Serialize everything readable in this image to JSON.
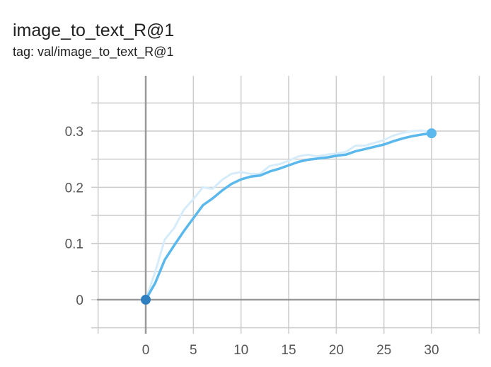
{
  "chart_data": {
    "type": "line",
    "title": "image_to_text_R@1",
    "subtitle": "tag: val/image_to_text_R@1",
    "xlabel": "",
    "ylabel": "",
    "xlim": [
      -5,
      35
    ],
    "ylim": [
      -0.05,
      0.4
    ],
    "xticks": [
      0,
      5,
      10,
      15,
      20,
      25,
      30
    ],
    "yticks": [
      0,
      0.1,
      0.2,
      0.3
    ],
    "ytick_labels": [
      "0",
      "0.1",
      "0.2",
      "0.3"
    ],
    "grid": true,
    "colors": {
      "smoothed": "#5ab8ec",
      "raw": "#d6ecfa",
      "start_marker": "#2f7fc1",
      "end_marker": "#5ab8ec",
      "axis": "#999999",
      "grid": "#cccccc"
    },
    "x": [
      0,
      1,
      2,
      3,
      4,
      5,
      6,
      7,
      8,
      9,
      10,
      11,
      12,
      13,
      14,
      15,
      16,
      17,
      18,
      19,
      20,
      21,
      22,
      23,
      24,
      25,
      26,
      27,
      28,
      29,
      30
    ],
    "series": [
      {
        "role": "raw",
        "values": [
          0,
          0.05,
          0.107,
          0.128,
          0.16,
          0.179,
          0.2,
          0.197,
          0.213,
          0.224,
          0.227,
          0.224,
          0.224,
          0.238,
          0.241,
          0.247,
          0.255,
          0.258,
          0.255,
          0.258,
          0.26,
          0.263,
          0.274,
          0.274,
          0.279,
          0.284,
          0.292,
          0.297,
          0.3,
          0.301,
          0.297
        ]
      },
      {
        "role": "smoothed",
        "values": [
          0,
          0.03,
          0.071,
          0.097,
          0.122,
          0.145,
          0.168,
          0.18,
          0.194,
          0.206,
          0.214,
          0.219,
          0.221,
          0.228,
          0.233,
          0.239,
          0.245,
          0.249,
          0.251,
          0.253,
          0.256,
          0.258,
          0.264,
          0.268,
          0.272,
          0.276,
          0.282,
          0.287,
          0.291,
          0.294,
          0.296
        ]
      }
    ]
  }
}
